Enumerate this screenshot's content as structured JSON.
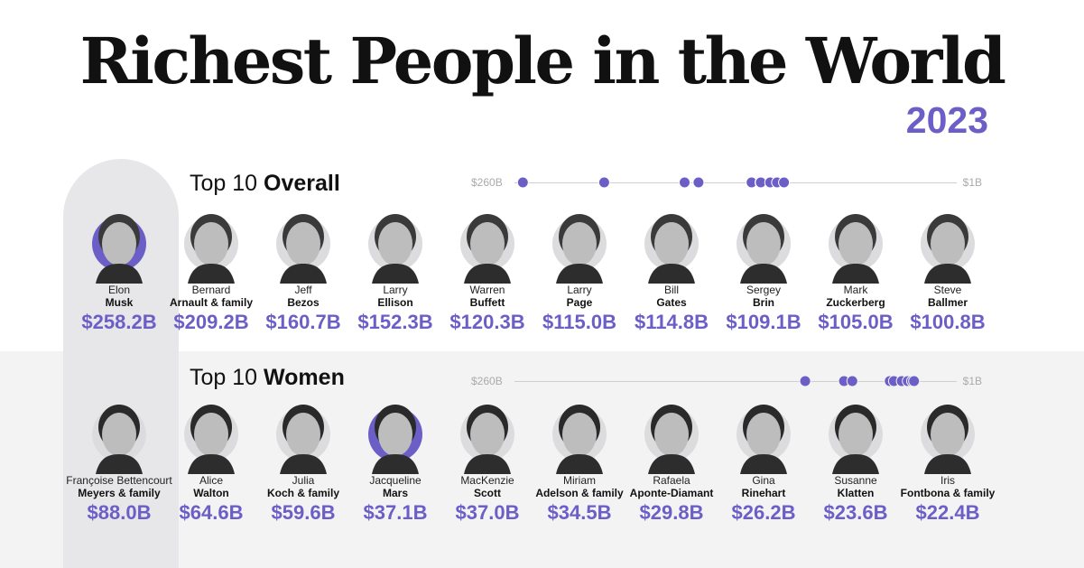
{
  "title": "Richest People in the World",
  "year": "2023",
  "colors": {
    "accent": "#6b5fc7",
    "band": "#f3f3f4",
    "highlight": "#e7e7e9"
  },
  "chart_data": [
    {
      "type": "scatter",
      "section_light": "Top 10",
      "section_bold": "Overall",
      "scale_max_label": "$260B",
      "scale_min_label": "$1B",
      "xlim": [
        260,
        1
      ],
      "people": [
        {
          "first": "Elon",
          "last": "Musk",
          "worth_label": "$258.2B",
          "value": 258.2
        },
        {
          "first": "Bernard",
          "last": "Arnault & family",
          "worth_label": "$209.2B",
          "value": 209.2
        },
        {
          "first": "Jeff",
          "last": "Bezos",
          "worth_label": "$160.7B",
          "value": 160.7
        },
        {
          "first": "Larry",
          "last": "Ellison",
          "worth_label": "$152.3B",
          "value": 152.3
        },
        {
          "first": "Warren",
          "last": "Buffett",
          "worth_label": "$120.3B",
          "value": 120.3
        },
        {
          "first": "Larry",
          "last": "Page",
          "worth_label": "$115.0B",
          "value": 115.0
        },
        {
          "first": "Bill",
          "last": "Gates",
          "worth_label": "$114.8B",
          "value": 114.8
        },
        {
          "first": "Sergey",
          "last": "Brin",
          "worth_label": "$109.1B",
          "value": 109.1
        },
        {
          "first": "Mark",
          "last": "Zuckerberg",
          "worth_label": "$105.0B",
          "value": 105.0
        },
        {
          "first": "Steve",
          "last": "Ballmer",
          "worth_label": "$100.8B",
          "value": 100.8
        }
      ]
    },
    {
      "type": "scatter",
      "section_light": "Top 10",
      "section_bold": "Women",
      "scale_max_label": "$260B",
      "scale_min_label": "$1B",
      "xlim": [
        260,
        1
      ],
      "people": [
        {
          "first": "Françoise Bettencourt",
          "last": "Meyers & family",
          "worth_label": "$88.0B",
          "value": 88.0
        },
        {
          "first": "Alice",
          "last": "Walton",
          "worth_label": "$64.6B",
          "value": 64.6
        },
        {
          "first": "Julia",
          "last": "Koch & family",
          "worth_label": "$59.6B",
          "value": 59.6
        },
        {
          "first": "Jacqueline",
          "last": "Mars",
          "worth_label": "$37.1B",
          "value": 37.1
        },
        {
          "first": "MacKenzie",
          "last": "Scott",
          "worth_label": "$37.0B",
          "value": 37.0
        },
        {
          "first": "Miriam",
          "last": "Adelson & family",
          "worth_label": "$34.5B",
          "value": 34.5
        },
        {
          "first": "Rafaela",
          "last": "Aponte-Diamant",
          "worth_label": "$29.8B",
          "value": 29.8
        },
        {
          "first": "Gina",
          "last": "Rinehart",
          "worth_label": "$26.2B",
          "value": 26.2
        },
        {
          "first": "Susanne",
          "last": "Klatten",
          "worth_label": "$23.6B",
          "value": 23.6
        },
        {
          "first": "Iris",
          "last": "Fontbona & family",
          "worth_label": "$22.4B",
          "value": 22.4
        }
      ]
    }
  ]
}
